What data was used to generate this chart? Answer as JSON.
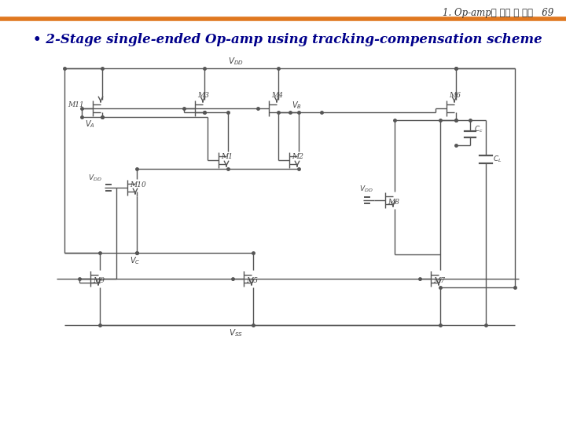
{
  "title_text": "1. Op-amp의 구조 및 특성",
  "page_number": "69",
  "bullet_text": "• 2-Stage single-ended Op-amp using tracking-compensation scheme",
  "bg_color": "#ffffff",
  "header_line_color": "#e07820",
  "title_color": "#333333",
  "bullet_color": "#00008B",
  "title_fontsize": 8.5,
  "bullet_fontsize": 12,
  "circuit_color": "#555555",
  "lw": 1.0
}
